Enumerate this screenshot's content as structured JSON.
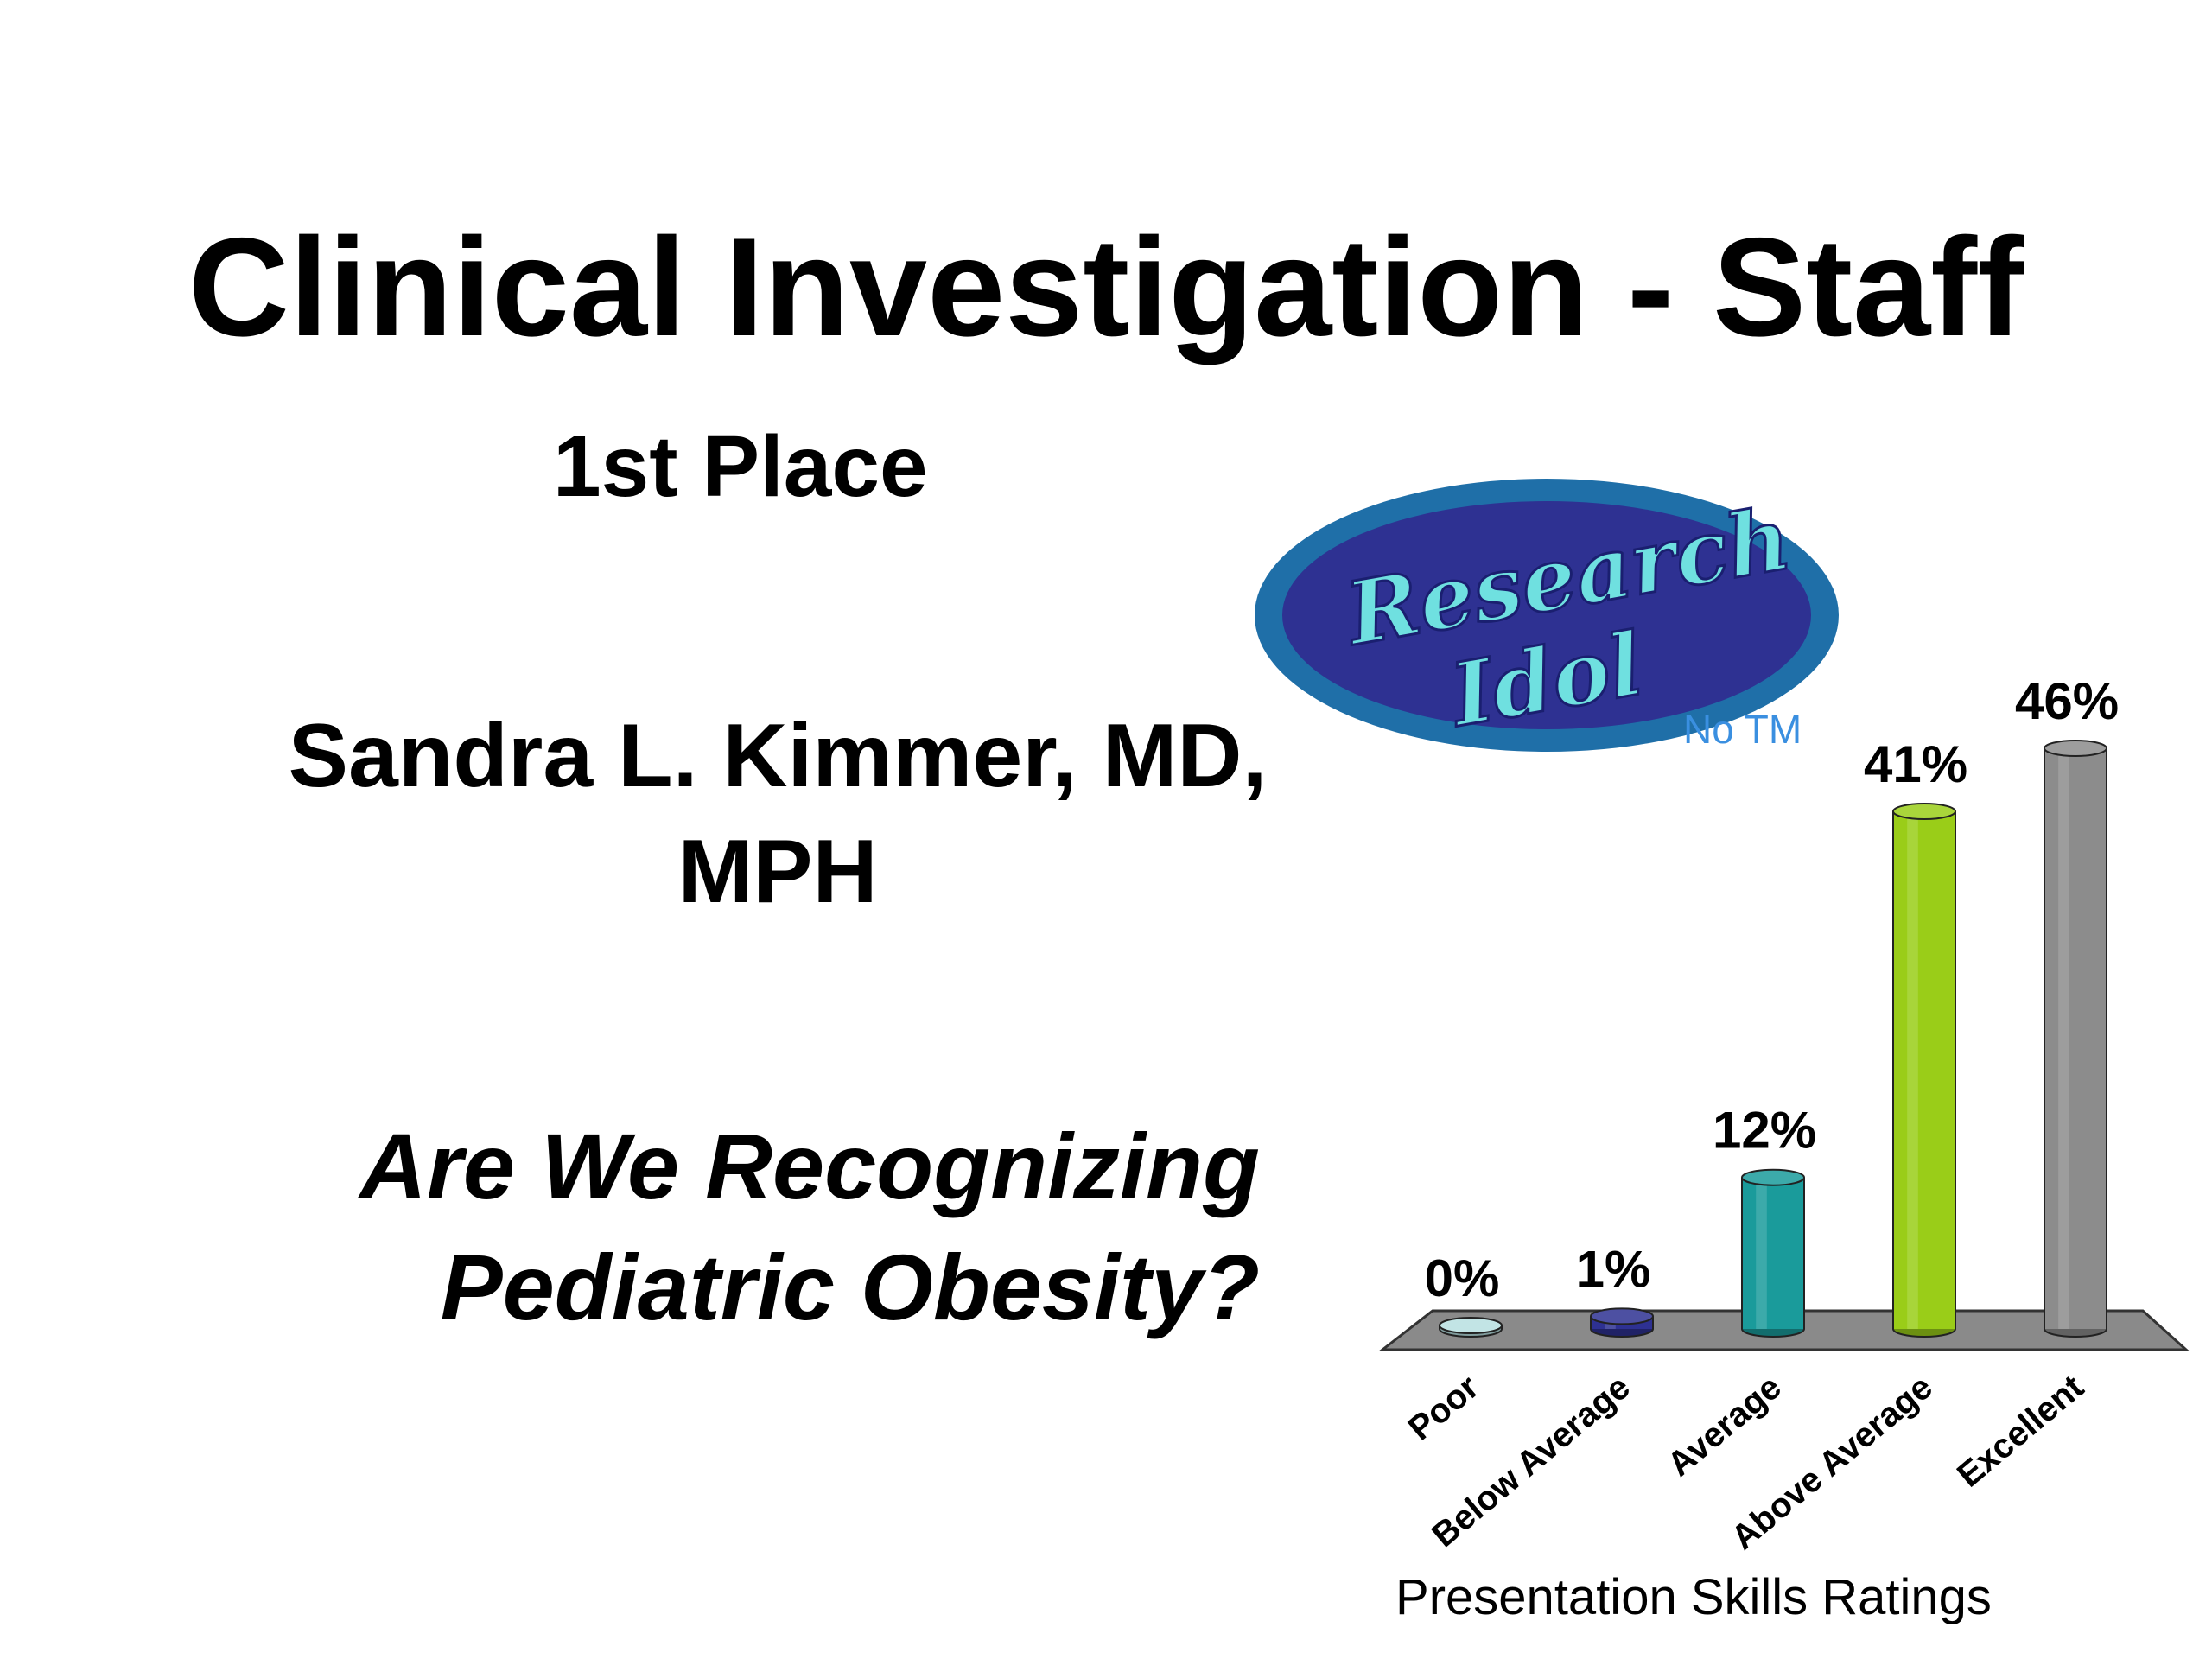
{
  "slide": {
    "title": "Clinical Investigation - Staff",
    "place": "1st Place",
    "presenter_line1": "Sandra L. Kimmer, MD,",
    "presenter_line2": "MPH",
    "talk_line1": "Are We Recognizing",
    "talk_line2": "Pediatric Obesity?"
  },
  "logo": {
    "wordmark_line1": "Research",
    "wordmark_line2": "Idol",
    "tm_note": "No TM",
    "colors": {
      "outer": "#1f6fa8",
      "inner": "#2e3192",
      "text": "#6fe0e0"
    }
  },
  "chart_data": {
    "type": "bar",
    "categories": [
      "Poor",
      "Below Average",
      "Average",
      "Above Average",
      "Excellent"
    ],
    "values": [
      0,
      1,
      12,
      41,
      46
    ],
    "value_labels": [
      "0%",
      "1%",
      "12%",
      "41%",
      "46%"
    ],
    "colors": [
      "#b7dfe0",
      "#2e3192",
      "#1a9b9b",
      "#9acd18",
      "#8c8c8c"
    ],
    "xlabel": "Presentation Skills Ratings",
    "ylim": [
      0,
      46
    ],
    "grid": false,
    "legend": "none",
    "floor_color": "#8a8a8a"
  }
}
